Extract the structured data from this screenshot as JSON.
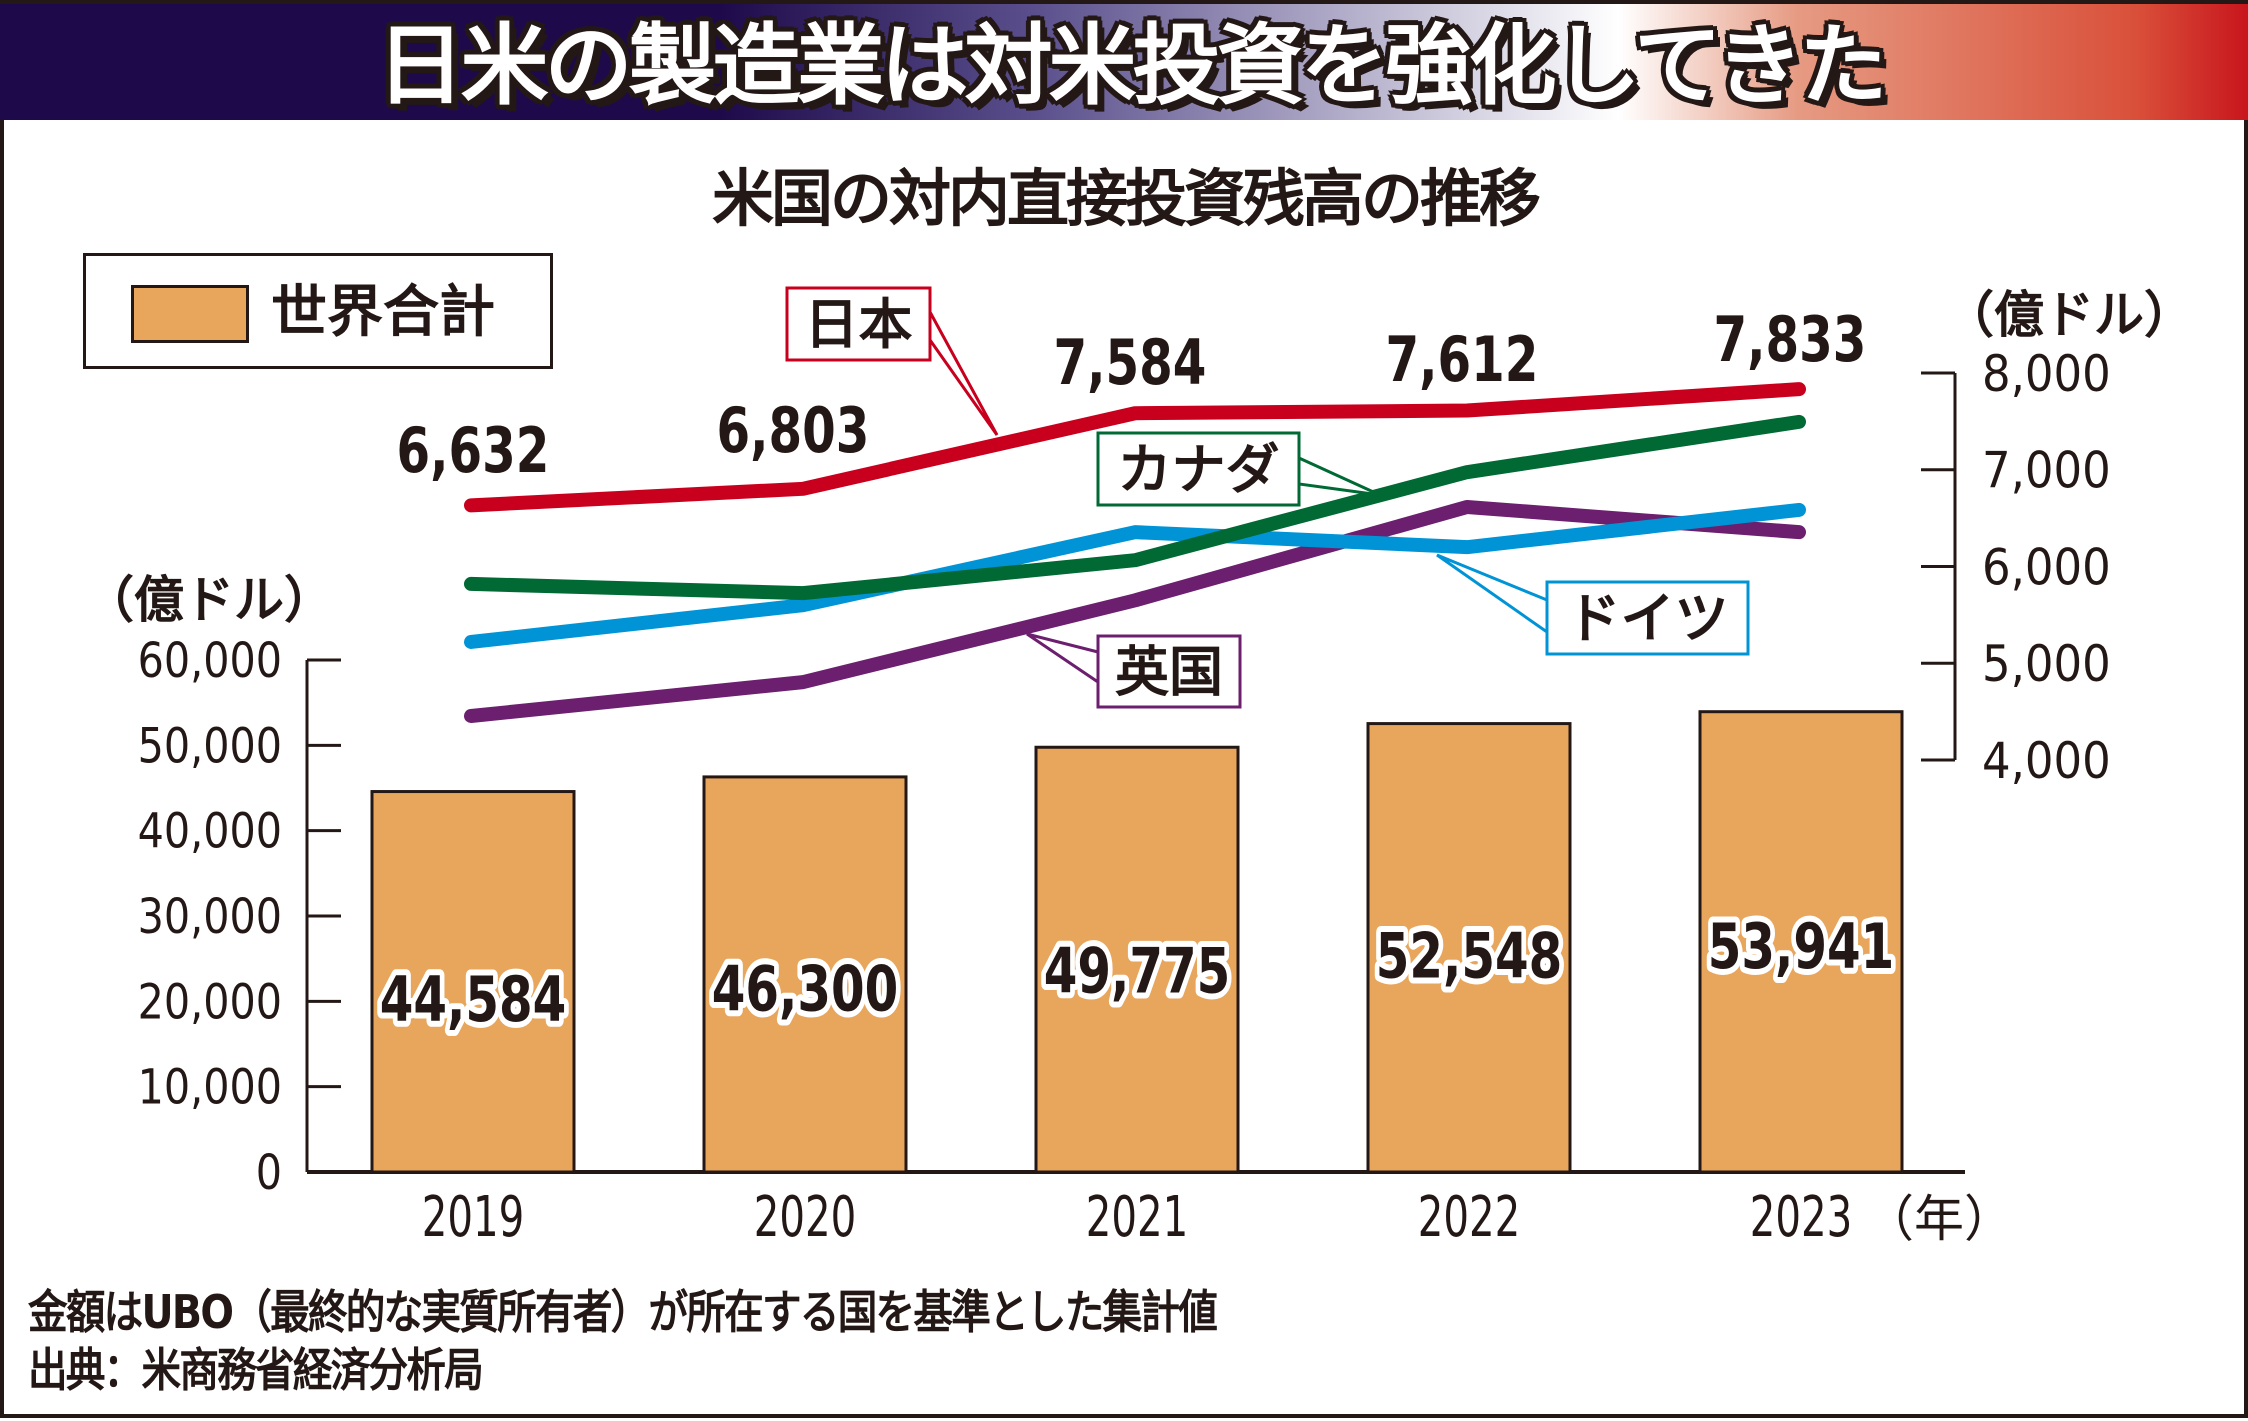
{
  "banner": {
    "title": "日米の製造業は対米投資を強化してきた"
  },
  "colors": {
    "bar": "#e8a55c",
    "japan": "#c8001e",
    "canada": "#006934",
    "germany": "#0094d6",
    "uk": "#6b1f6e",
    "navy": "#1e0a4a"
  },
  "footer": {
    "note": "金額はUBO（最終的な実質所有者）が所在する国を基準とした集計値",
    "source": "出典：米商務省経済分析局"
  },
  "chart_data": {
    "type": "bar+line",
    "title": "米国の対内直接投資残高の推移",
    "categories": [
      "2019",
      "2020",
      "2021",
      "2022",
      "2023"
    ],
    "x_unit": "（年）",
    "bar_series": {
      "name": "世界合計",
      "values": [
        44584,
        46300,
        49775,
        52548,
        53941
      ],
      "labels": [
        "44,584",
        "46,300",
        "49,775",
        "52,548",
        "53,941"
      ],
      "axis": "left"
    },
    "left_axis": {
      "unit": "（億ドル）",
      "range": [
        0,
        60000
      ],
      "ticks": [
        0,
        10000,
        20000,
        30000,
        40000,
        50000,
        60000
      ],
      "tick_labels": [
        "0",
        "10,000",
        "20,000",
        "30,000",
        "40,000",
        "50,000",
        "60,000"
      ]
    },
    "right_axis": {
      "unit": "（億ドル）",
      "range": [
        4000,
        8000
      ],
      "ticks": [
        4000,
        5000,
        6000,
        7000,
        8000
      ],
      "tick_labels": [
        "4,000",
        "5,000",
        "6,000",
        "7,000",
        "8,000"
      ]
    },
    "line_series": [
      {
        "name": "日本",
        "key": "japan",
        "values": [
          6632,
          6803,
          7584,
          7612,
          7833
        ],
        "labels": [
          "6,632",
          "6,803",
          "7,584",
          "7,612",
          "7,833"
        ]
      },
      {
        "name": "カナダ",
        "key": "canada",
        "values": [
          5820,
          5725,
          6065,
          6975,
          7495
        ]
      },
      {
        "name": "ドイツ",
        "key": "germany",
        "values": [
          5220,
          5600,
          6355,
          6200,
          6585
        ]
      },
      {
        "name": "英国",
        "key": "uk",
        "values": [
          4455,
          4805,
          5650,
          6615,
          6355
        ]
      }
    ],
    "legend": {
      "position": "top-left",
      "entries": [
        "世界合計"
      ]
    },
    "grid": false
  }
}
